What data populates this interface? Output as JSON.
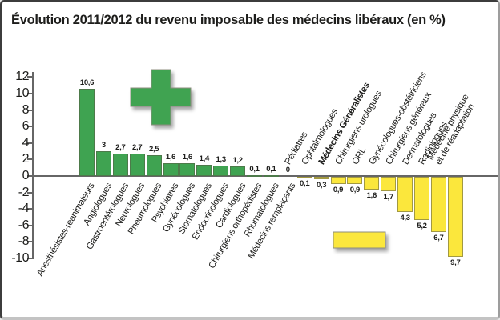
{
  "title": "Évolution 2011/2012 du revenu imposable des médecins libéraux (en %)",
  "colors": {
    "positive_bar": "#3fa351",
    "negative_bar": "#fbe73c",
    "axis": "#666666",
    "text": "#1d1d1b",
    "bar_border": "#8d8d7f"
  },
  "icons": {
    "plus": "plus-sign-gain-indicator",
    "minus": "minus-sign-loss-indicator"
  },
  "chart_data": {
    "type": "bar",
    "title": "Évolution 2011/2012 du revenu imposable des médecins libéraux (en %)",
    "xlabel": "",
    "ylabel": "",
    "ylim": [
      -10,
      12
    ],
    "ytick_step": 2,
    "yticks": [
      12,
      10,
      8,
      6,
      4,
      2,
      0,
      -2,
      -4,
      -6,
      -8,
      -10
    ],
    "grid": false,
    "legend": false,
    "decimal_separator": ",",
    "emphasized_category": "Médecins Généralistes",
    "categories": [
      "Anesthésistes-réanimateurs",
      "Angiologues",
      "Gastroentérologues",
      "Neurologues",
      "Pneumologues",
      "Psychiatres",
      "Gynécologues",
      "Stomatologues",
      "Endocrinologues",
      "Cardiologues",
      "Chirurgiens orthopédistes",
      "Rhumatologues",
      "Médecins remplaçants",
      "Pédiatres",
      "Ophtalmologues",
      "Médecins Généralistes",
      "Chirurgiens urologues",
      "ORL",
      "Gynécologues-obstétriciens",
      "Chirurgiens généraux",
      "Dermatologues",
      "Radiologues",
      "Médecine physique\net de réadaptation"
    ],
    "values": [
      10.6,
      3,
      2.7,
      2.7,
      2.5,
      1.6,
      1.6,
      1.4,
      1.3,
      1.2,
      0.1,
      0.1,
      0,
      -0.1,
      -0.3,
      -0.9,
      -0.9,
      -1.6,
      -1.7,
      -4.3,
      -5.2,
      -6.7,
      -9.7
    ]
  }
}
